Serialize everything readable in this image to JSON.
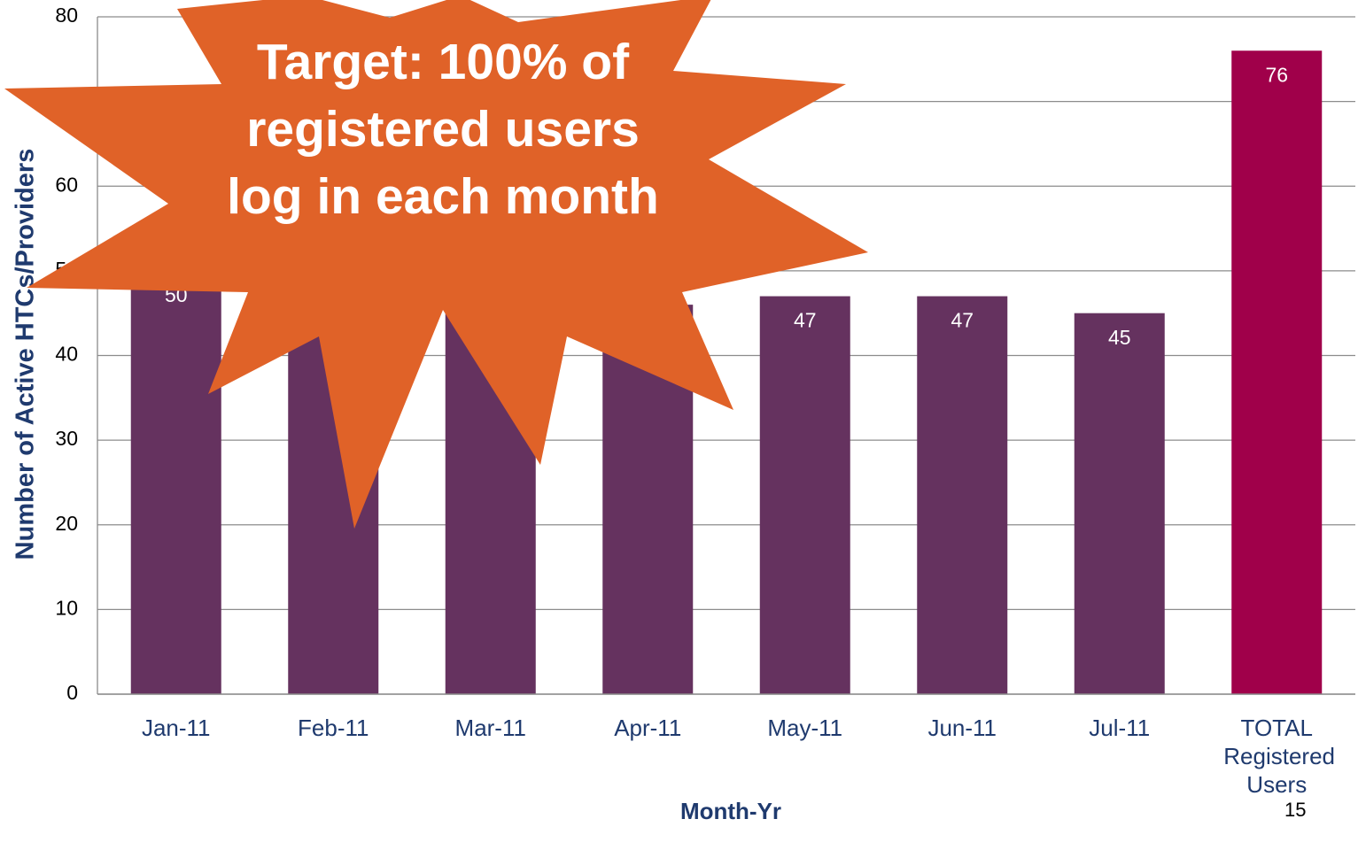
{
  "chart_data": {
    "type": "bar",
    "categories": [
      "Jan-11",
      "Feb-11",
      "Mar-11",
      "Apr-11",
      "May-11",
      "Jun-11",
      "Jul-11",
      "TOTAL Registered Users"
    ],
    "values": [
      50,
      47,
      46,
      46,
      47,
      47,
      45,
      76
    ],
    "colors": [
      "#65325f",
      "#65325f",
      "#65325f",
      "#65325f",
      "#65325f",
      "#65325f",
      "#65325f",
      "#a0004a"
    ],
    "ylim": [
      0,
      80
    ],
    "yticks": [
      0,
      10,
      20,
      30,
      40,
      50,
      60,
      70,
      80
    ],
    "grid": true,
    "ylabel": "Number of Active HTCs/Providers",
    "xlabel": "Month-Yr",
    "annotation": "Target: 100% of registered users log in each month",
    "annotation_color": "#e06228",
    "page_number": "15"
  }
}
